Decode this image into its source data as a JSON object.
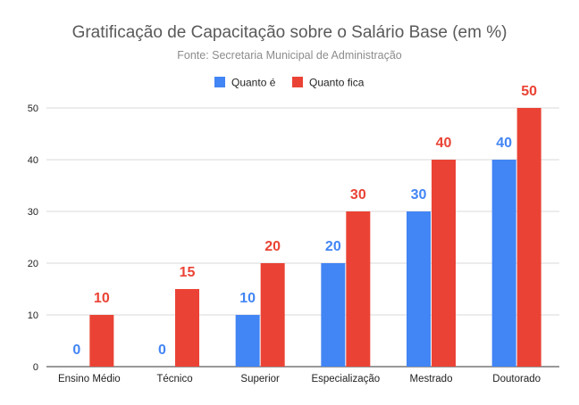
{
  "chart_data": {
    "type": "bar",
    "title": "Gratificação de Capacitação sobre o Salário Base (em %)",
    "subtitle": "Fonte: Secretaria Municipal de Administração",
    "xlabel": "",
    "ylabel": "",
    "categories": [
      "Ensino Médio",
      "Técnico",
      "Superior",
      "Especialização",
      "Mestrado",
      "Doutorado"
    ],
    "series": [
      {
        "name": "Quanto é",
        "color": "#4285f4",
        "values": [
          0,
          0,
          10,
          20,
          30,
          40
        ]
      },
      {
        "name": "Quanto fica",
        "color": "#ea4335",
        "values": [
          10,
          15,
          20,
          30,
          40,
          50
        ]
      }
    ],
    "ylim": [
      0,
      50
    ],
    "yticks": [
      0,
      10,
      20,
      30,
      40,
      50
    ],
    "grid": true,
    "legend": "top-center",
    "data_labels": true
  }
}
